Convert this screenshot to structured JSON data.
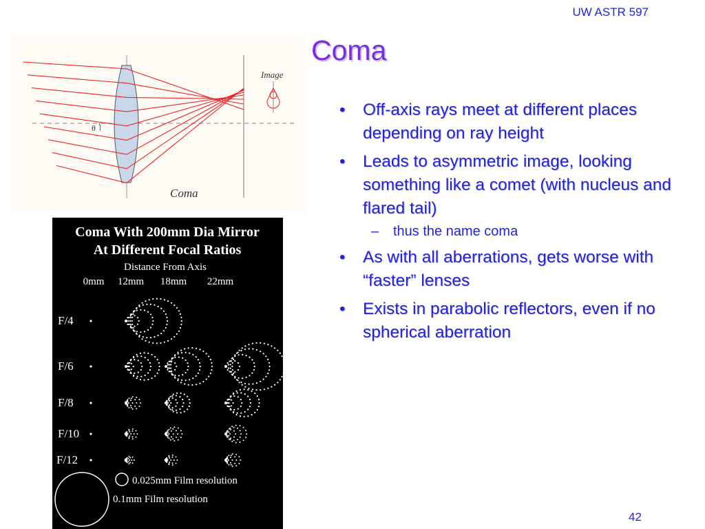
{
  "header": {
    "course": "UW ASTR 597"
  },
  "slide": {
    "title": "Coma",
    "page_number": "42"
  },
  "bullets": [
    {
      "level": 1,
      "text": "Off-axis rays meet at different places depending on ray height"
    },
    {
      "level": 1,
      "text": "Leads to asymmetric image, looking something like a comet (with nucleus and flared tail)"
    },
    {
      "level": 2,
      "text": "thus the name coma"
    },
    {
      "level": 1,
      "text": "As with all aberrations, gets worse with “faster” lenses"
    },
    {
      "level": 1,
      "text": "Exists in parabolic reflectors, even if no spherical aberration"
    }
  ],
  "bullet_symbols": {
    "level1": "•",
    "level2": "–"
  },
  "lens_figure": {
    "image_label": "Image",
    "caption": "Coma",
    "angle_label": "θ",
    "ray_color": "#ee2222",
    "lens_color": "#c8d8ea"
  },
  "coma_figure": {
    "title_line1": "Coma With 200mm Dia Mirror",
    "title_line2": "At Different Focal Ratios",
    "axis_title": "Distance From Axis",
    "columns": [
      "0mm",
      "12mm",
      "18mm",
      "22mm"
    ],
    "rows": [
      "F/4",
      "F/6",
      "F/8",
      "F/10",
      "F/12"
    ],
    "legend_small": "0.025mm Film resolution",
    "legend_large": "0.1mm Film resolution"
  },
  "colors": {
    "title": "#7a2be6",
    "text": "#2222dd"
  }
}
